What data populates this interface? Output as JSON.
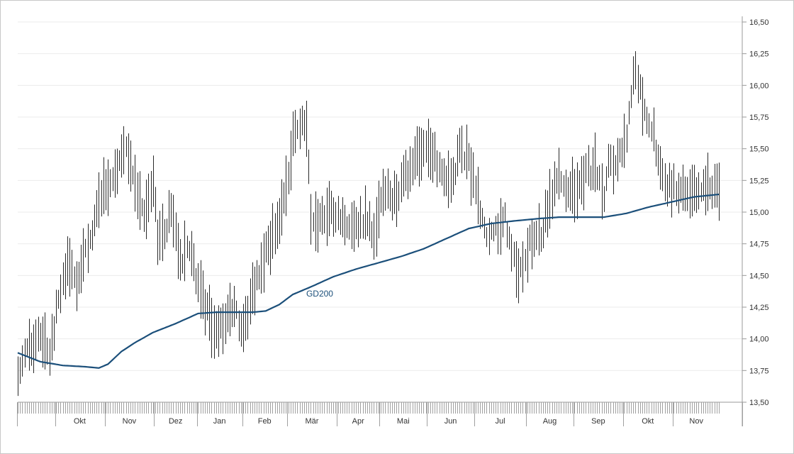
{
  "chart_data": {
    "type": "bar",
    "subtype": "ohlc-high-low",
    "ylim": [
      13.5,
      16.5
    ],
    "yticks": [
      "13,50",
      "13,75",
      "14,00",
      "14,25",
      "14,50",
      "14,75",
      "15,00",
      "15,25",
      "15,50",
      "15,75",
      "16,00",
      "16,25",
      "16,50"
    ],
    "ytick_values": [
      13.5,
      13.75,
      14.0,
      14.25,
      14.5,
      14.75,
      15.0,
      15.25,
      15.5,
      15.75,
      16.0,
      16.25,
      16.5
    ],
    "grid": true,
    "y_axis_position": "right",
    "x_months": [
      {
        "label": "Okt",
        "start": 17,
        "end": 38
      },
      {
        "label": "Nov",
        "start": 39,
        "end": 60
      },
      {
        "label": "Dez",
        "start": 61,
        "end": 79
      },
      {
        "label": "Jan",
        "start": 80,
        "end": 99
      },
      {
        "label": "Feb",
        "start": 100,
        "end": 119
      },
      {
        "label": "Mär",
        "start": 120,
        "end": 141
      },
      {
        "label": "Apr",
        "start": 142,
        "end": 160
      },
      {
        "label": "Mai",
        "start": 161,
        "end": 181
      },
      {
        "label": "Jun",
        "start": 182,
        "end": 202
      },
      {
        "label": "Jul",
        "start": 203,
        "end": 225
      },
      {
        "label": "Aug",
        "start": 226,
        "end": 246
      },
      {
        "label": "Sep",
        "start": 247,
        "end": 268
      },
      {
        "label": "Okt",
        "start": 269,
        "end": 290
      },
      {
        "label": "Nov",
        "start": 291,
        "end": 311
      }
    ],
    "n_days": 312,
    "price_keyframes": [
      [
        0,
        13.72
      ],
      [
        6,
        13.95
      ],
      [
        10,
        14.05
      ],
      [
        14,
        13.9
      ],
      [
        18,
        14.3
      ],
      [
        22,
        14.6
      ],
      [
        26,
        14.45
      ],
      [
        30,
        14.7
      ],
      [
        34,
        14.9
      ],
      [
        38,
        15.2
      ],
      [
        42,
        15.3
      ],
      [
        46,
        15.45
      ],
      [
        48,
        15.5
      ],
      [
        52,
        15.2
      ],
      [
        56,
        15.0
      ],
      [
        60,
        15.25
      ],
      [
        62,
        14.8
      ],
      [
        66,
        14.9
      ],
      [
        68,
        15.05
      ],
      [
        72,
        14.6
      ],
      [
        76,
        14.7
      ],
      [
        80,
        14.45
      ],
      [
        84,
        14.2
      ],
      [
        88,
        14.05
      ],
      [
        92,
        14.15
      ],
      [
        96,
        14.2
      ],
      [
        100,
        14.1
      ],
      [
        104,
        14.35
      ],
      [
        108,
        14.6
      ],
      [
        112,
        14.75
      ],
      [
        116,
        14.95
      ],
      [
        120,
        15.3
      ],
      [
        122,
        15.6
      ],
      [
        126,
        15.75
      ],
      [
        128,
        15.6
      ],
      [
        130,
        15.0
      ],
      [
        134,
        14.9
      ],
      [
        138,
        15.0
      ],
      [
        142,
        14.95
      ],
      [
        146,
        14.85
      ],
      [
        150,
        14.9
      ],
      [
        154,
        14.95
      ],
      [
        158,
        14.85
      ],
      [
        162,
        15.2
      ],
      [
        166,
        15.1
      ],
      [
        170,
        15.2
      ],
      [
        174,
        15.35
      ],
      [
        176,
        15.4
      ],
      [
        180,
        15.5
      ],
      [
        184,
        15.45
      ],
      [
        188,
        15.35
      ],
      [
        192,
        15.2
      ],
      [
        196,
        15.5
      ],
      [
        200,
        15.4
      ],
      [
        204,
        15.1
      ],
      [
        208,
        14.75
      ],
      [
        212,
        14.85
      ],
      [
        216,
        14.95
      ],
      [
        218,
        14.75
      ],
      [
        222,
        14.55
      ],
      [
        226,
        14.7
      ],
      [
        230,
        14.85
      ],
      [
        232,
        14.8
      ],
      [
        236,
        15.1
      ],
      [
        240,
        15.25
      ],
      [
        244,
        15.2
      ],
      [
        248,
        15.15
      ],
      [
        252,
        15.3
      ],
      [
        256,
        15.35
      ],
      [
        260,
        15.1
      ],
      [
        262,
        15.35
      ],
      [
        266,
        15.4
      ],
      [
        270,
        15.6
      ],
      [
        272,
        15.9
      ],
      [
        274,
        16.15
      ],
      [
        276,
        15.95
      ],
      [
        278,
        15.8
      ],
      [
        282,
        15.6
      ],
      [
        284,
        15.45
      ],
      [
        286,
        15.25
      ],
      [
        290,
        15.2
      ],
      [
        294,
        15.15
      ],
      [
        298,
        15.1
      ],
      [
        300,
        15.15
      ],
      [
        304,
        15.2
      ],
      [
        311,
        15.2
      ]
    ],
    "sma_keyframes": [
      [
        0,
        13.89
      ],
      [
        10,
        13.82
      ],
      [
        20,
        13.79
      ],
      [
        30,
        13.78
      ],
      [
        36,
        13.77
      ],
      [
        40,
        13.8
      ],
      [
        46,
        13.9
      ],
      [
        52,
        13.97
      ],
      [
        60,
        14.05
      ],
      [
        70,
        14.12
      ],
      [
        80,
        14.2
      ],
      [
        88,
        14.21
      ],
      [
        96,
        14.21
      ],
      [
        104,
        14.21
      ],
      [
        110,
        14.22
      ],
      [
        116,
        14.27
      ],
      [
        122,
        14.35
      ],
      [
        130,
        14.41
      ],
      [
        140,
        14.49
      ],
      [
        150,
        14.55
      ],
      [
        160,
        14.6
      ],
      [
        170,
        14.65
      ],
      [
        180,
        14.71
      ],
      [
        190,
        14.79
      ],
      [
        200,
        14.87
      ],
      [
        210,
        14.91
      ],
      [
        220,
        14.93
      ],
      [
        226,
        14.94
      ],
      [
        232,
        14.95
      ],
      [
        240,
        14.96
      ],
      [
        250,
        14.96
      ],
      [
        260,
        14.96
      ],
      [
        270,
        14.99
      ],
      [
        280,
        15.04
      ],
      [
        290,
        15.08
      ],
      [
        300,
        15.12
      ],
      [
        311,
        15.14
      ]
    ],
    "series": [
      {
        "name": "GD200",
        "type": "line",
        "color": "#1b4f7a"
      },
      {
        "type": "hilo",
        "color": "#222222"
      }
    ]
  },
  "sma_label": "GD200"
}
